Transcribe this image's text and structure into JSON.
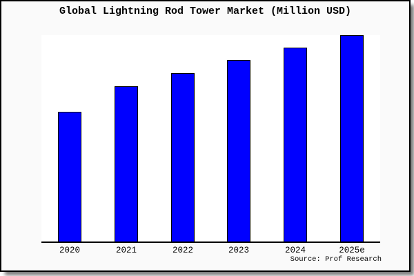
{
  "title": "Global Lightning Rod Tower Market (Million USD)",
  "source": "Source: Prof Research",
  "colors": {
    "bar": "#0000ff",
    "bar_edge": "#000000",
    "card_bg": "#fafafa",
    "plot_bg": "#ffffff",
    "border": "#000000",
    "shadow": "#808080"
  },
  "chart_data": {
    "type": "bar",
    "title": "Global Lightning Rod Tower Market (Million USD)",
    "categories": [
      "2020",
      "2021",
      "2022",
      "2023",
      "2024",
      "2025e"
    ],
    "values": [
      62.9,
      75.3,
      81.6,
      88.0,
      94.0,
      100.0
    ],
    "xlabel": "",
    "ylabel": "",
    "ylim": [
      0,
      100
    ],
    "value_scale_note": "no y-axis ticks or gridlines shown; bar heights relative to 2025e = 100",
    "grid": false,
    "legend": "none",
    "annotations": [
      "Source: Prof Research"
    ]
  }
}
